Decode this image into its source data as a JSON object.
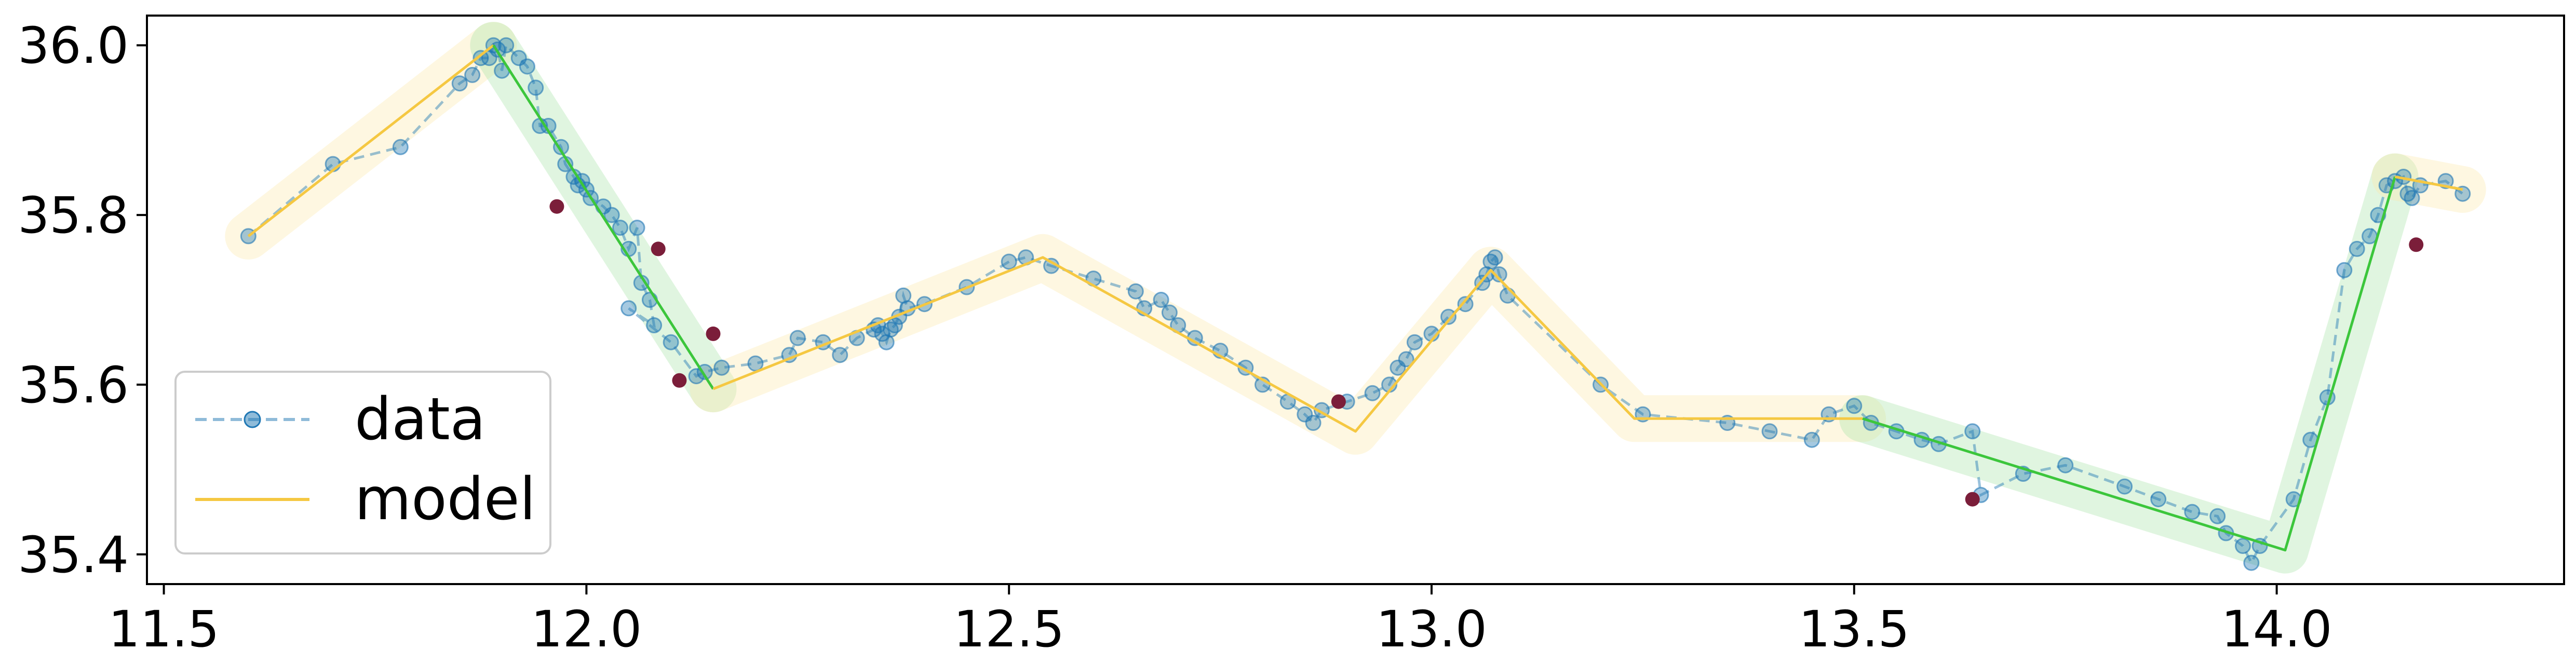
{
  "chart_data": {
    "type": "line",
    "title": "",
    "xlabel": "",
    "ylabel": "",
    "xlim": [
      11.48,
      14.34
    ],
    "ylim": [
      35.365,
      36.035
    ],
    "xticks": [
      11.5,
      12.0,
      12.5,
      13.0,
      13.5,
      14.0
    ],
    "xtick_labels": [
      "11.5",
      "12.0",
      "12.5",
      "13.0",
      "13.5",
      "14.0"
    ],
    "yticks": [
      35.4,
      35.6,
      35.8,
      36.0
    ],
    "ytick_labels": [
      "35.4",
      "35.6",
      "35.8",
      "36.0"
    ],
    "grid": false,
    "legend": {
      "placement": "lower-left",
      "entries": [
        {
          "label": "data",
          "color": "#1f77b4",
          "style": "dashed-with-markers"
        },
        {
          "label": "model",
          "color": "#f5c842",
          "style": "solid"
        }
      ]
    },
    "colors": {
      "data": "#1f77b4",
      "model": "#f5c842",
      "band_yellow": "#fde9a8",
      "band_green": "#a6e3a6",
      "model_green": "#3cc63c",
      "outlier": "#7b1e3a"
    },
    "data_series": {
      "name": "data",
      "points": [
        [
          11.6,
          35.775
        ],
        [
          11.7,
          35.86
        ],
        [
          11.78,
          35.88
        ],
        [
          11.85,
          35.955
        ],
        [
          11.865,
          35.965
        ],
        [
          11.875,
          35.985
        ],
        [
          11.885,
          35.985
        ],
        [
          11.89,
          36.0
        ],
        [
          11.895,
          35.995
        ],
        [
          11.9,
          35.97
        ],
        [
          11.905,
          36.0
        ],
        [
          11.92,
          35.985
        ],
        [
          11.93,
          35.975
        ],
        [
          11.94,
          35.95
        ],
        [
          11.945,
          35.905
        ],
        [
          11.955,
          35.905
        ],
        [
          11.97,
          35.88
        ],
        [
          11.975,
          35.86
        ],
        [
          11.985,
          35.845
        ],
        [
          11.99,
          35.835
        ],
        [
          11.995,
          35.84
        ],
        [
          12.0,
          35.83
        ],
        [
          12.005,
          35.82
        ],
        [
          12.02,
          35.81
        ],
        [
          12.03,
          35.8
        ],
        [
          12.04,
          35.785
        ],
        [
          12.05,
          35.76
        ],
        [
          12.06,
          35.785
        ],
        [
          12.065,
          35.72
        ],
        [
          12.075,
          35.7
        ],
        [
          12.08,
          35.67
        ],
        [
          12.05,
          35.69
        ],
        [
          12.1,
          35.65
        ],
        [
          12.13,
          35.61
        ],
        [
          12.14,
          35.615
        ],
        [
          12.16,
          35.62
        ],
        [
          12.2,
          35.625
        ],
        [
          12.24,
          35.635
        ],
        [
          12.25,
          35.655
        ],
        [
          12.28,
          35.65
        ],
        [
          12.3,
          35.635
        ],
        [
          12.32,
          35.655
        ],
        [
          12.34,
          35.665
        ],
        [
          12.345,
          35.67
        ],
        [
          12.35,
          35.66
        ],
        [
          12.355,
          35.65
        ],
        [
          12.36,
          35.665
        ],
        [
          12.365,
          35.67
        ],
        [
          12.37,
          35.68
        ],
        [
          12.375,
          35.705
        ],
        [
          12.38,
          35.69
        ],
        [
          12.4,
          35.695
        ],
        [
          12.45,
          35.715
        ],
        [
          12.5,
          35.745
        ],
        [
          12.52,
          35.75
        ],
        [
          12.55,
          35.74
        ],
        [
          12.6,
          35.725
        ],
        [
          12.65,
          35.71
        ],
        [
          12.66,
          35.69
        ],
        [
          12.68,
          35.7
        ],
        [
          12.69,
          35.685
        ],
        [
          12.7,
          35.67
        ],
        [
          12.72,
          35.655
        ],
        [
          12.75,
          35.64
        ],
        [
          12.78,
          35.62
        ],
        [
          12.8,
          35.6
        ],
        [
          12.83,
          35.58
        ],
        [
          12.85,
          35.565
        ],
        [
          12.86,
          35.555
        ],
        [
          12.87,
          35.57
        ],
        [
          12.9,
          35.58
        ],
        [
          12.93,
          35.59
        ],
        [
          12.95,
          35.6
        ],
        [
          12.96,
          35.62
        ],
        [
          12.97,
          35.63
        ],
        [
          12.98,
          35.65
        ],
        [
          13.0,
          35.66
        ],
        [
          13.02,
          35.68
        ],
        [
          13.04,
          35.695
        ],
        [
          13.06,
          35.72
        ],
        [
          13.065,
          35.73
        ],
        [
          13.07,
          35.745
        ],
        [
          13.075,
          35.75
        ],
        [
          13.08,
          35.73
        ],
        [
          13.09,
          35.705
        ],
        [
          13.2,
          35.6
        ],
        [
          13.25,
          35.565
        ],
        [
          13.35,
          35.555
        ],
        [
          13.4,
          35.545
        ],
        [
          13.45,
          35.535
        ],
        [
          13.47,
          35.565
        ],
        [
          13.5,
          35.575
        ],
        [
          13.52,
          35.555
        ],
        [
          13.55,
          35.545
        ],
        [
          13.58,
          35.535
        ],
        [
          13.6,
          35.53
        ],
        [
          13.64,
          35.545
        ],
        [
          13.65,
          35.47
        ],
        [
          13.7,
          35.495
        ],
        [
          13.75,
          35.505
        ],
        [
          13.82,
          35.48
        ],
        [
          13.86,
          35.465
        ],
        [
          13.9,
          35.45
        ],
        [
          13.93,
          35.445
        ],
        [
          13.94,
          35.425
        ],
        [
          13.96,
          35.41
        ],
        [
          13.97,
          35.39
        ],
        [
          13.98,
          35.41
        ],
        [
          14.02,
          35.465
        ],
        [
          14.04,
          35.535
        ],
        [
          14.06,
          35.585
        ],
        [
          14.08,
          35.735
        ],
        [
          14.095,
          35.76
        ],
        [
          14.11,
          35.775
        ],
        [
          14.12,
          35.8
        ],
        [
          14.13,
          35.835
        ],
        [
          14.14,
          35.84
        ],
        [
          14.15,
          35.845
        ],
        [
          14.155,
          35.825
        ],
        [
          14.16,
          35.82
        ],
        [
          14.17,
          35.835
        ],
        [
          14.2,
          35.84
        ],
        [
          14.22,
          35.825
        ]
      ]
    },
    "outliers": {
      "points": [
        [
          11.965,
          35.81
        ],
        [
          12.085,
          35.76
        ],
        [
          12.15,
          35.66
        ],
        [
          12.11,
          35.605
        ],
        [
          12.89,
          35.58
        ],
        [
          13.64,
          35.465
        ],
        [
          14.165,
          35.765
        ]
      ]
    },
    "model_series": {
      "name": "model",
      "segments": [
        {
          "color": "yellow",
          "points": [
            [
              11.6,
              35.775
            ],
            [
              11.89,
              36.0
            ]
          ]
        },
        {
          "color": "green",
          "points": [
            [
              11.89,
              36.0
            ],
            [
              12.15,
              35.595
            ]
          ]
        },
        {
          "color": "yellow",
          "points": [
            [
              12.15,
              35.595
            ],
            [
              12.54,
              35.75
            ],
            [
              12.91,
              35.545
            ],
            [
              13.07,
              35.735
            ],
            [
              13.24,
              35.56
            ],
            [
              13.51,
              35.56
            ]
          ]
        },
        {
          "color": "green",
          "points": [
            [
              13.51,
              35.56
            ],
            [
              14.01,
              35.405
            ],
            [
              14.14,
              35.845
            ]
          ]
        },
        {
          "color": "yellow",
          "points": [
            [
              14.14,
              35.845
            ],
            [
              14.22,
              35.83
            ]
          ]
        }
      ]
    }
  }
}
